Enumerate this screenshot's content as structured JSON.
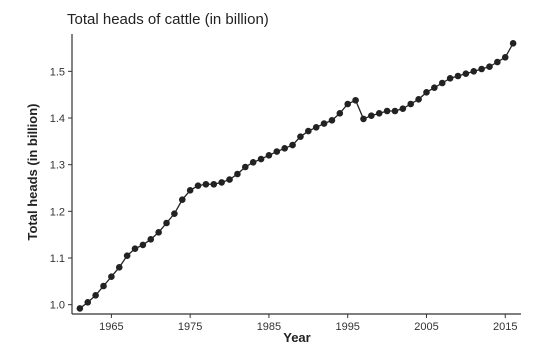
{
  "chart_data": {
    "type": "line",
    "title": "Total heads of cattle (in billion)",
    "xlabel": "Year",
    "ylabel": "Total heads (in billion)",
    "xlim": [
      1960,
      2017
    ],
    "ylim": [
      0.98,
      1.58
    ],
    "x_ticks": [
      1965,
      1975,
      1985,
      1995,
      2005,
      2015
    ],
    "x_tick_labels": [
      "1965",
      "1975",
      "1985",
      "1995",
      "2005",
      "2015"
    ],
    "y_ticks": [
      1.0,
      1.1,
      1.2,
      1.3,
      1.4,
      1.5
    ],
    "y_tick_labels": [
      "1.0",
      "1.1",
      "1.2",
      "1.3",
      "1.4",
      "1.5"
    ],
    "grid": false,
    "series_color": "#222222",
    "x": [
      1961,
      1962,
      1963,
      1964,
      1965,
      1966,
      1967,
      1968,
      1969,
      1970,
      1971,
      1972,
      1973,
      1974,
      1975,
      1976,
      1977,
      1978,
      1979,
      1980,
      1981,
      1982,
      1983,
      1984,
      1985,
      1986,
      1987,
      1988,
      1989,
      1990,
      1991,
      1992,
      1993,
      1994,
      1995,
      1996,
      1997,
      1998,
      1999,
      2000,
      2001,
      2002,
      2003,
      2004,
      2005,
      2006,
      2007,
      2008,
      2009,
      2010,
      2011,
      2012,
      2013,
      2014,
      2015,
      2016
    ],
    "y": [
      0.992,
      1.005,
      1.02,
      1.04,
      1.06,
      1.08,
      1.105,
      1.12,
      1.128,
      1.14,
      1.155,
      1.175,
      1.195,
      1.225,
      1.245,
      1.255,
      1.258,
      1.258,
      1.262,
      1.268,
      1.28,
      1.295,
      1.305,
      1.312,
      1.32,
      1.328,
      1.335,
      1.342,
      1.36,
      1.372,
      1.38,
      1.388,
      1.395,
      1.41,
      1.43,
      1.438,
      1.398,
      1.405,
      1.41,
      1.415,
      1.415,
      1.42,
      1.43,
      1.44,
      1.455,
      1.465,
      1.475,
      1.485,
      1.49,
      1.495,
      1.5,
      1.505,
      1.51,
      1.52,
      1.53,
      1.56
    ]
  }
}
